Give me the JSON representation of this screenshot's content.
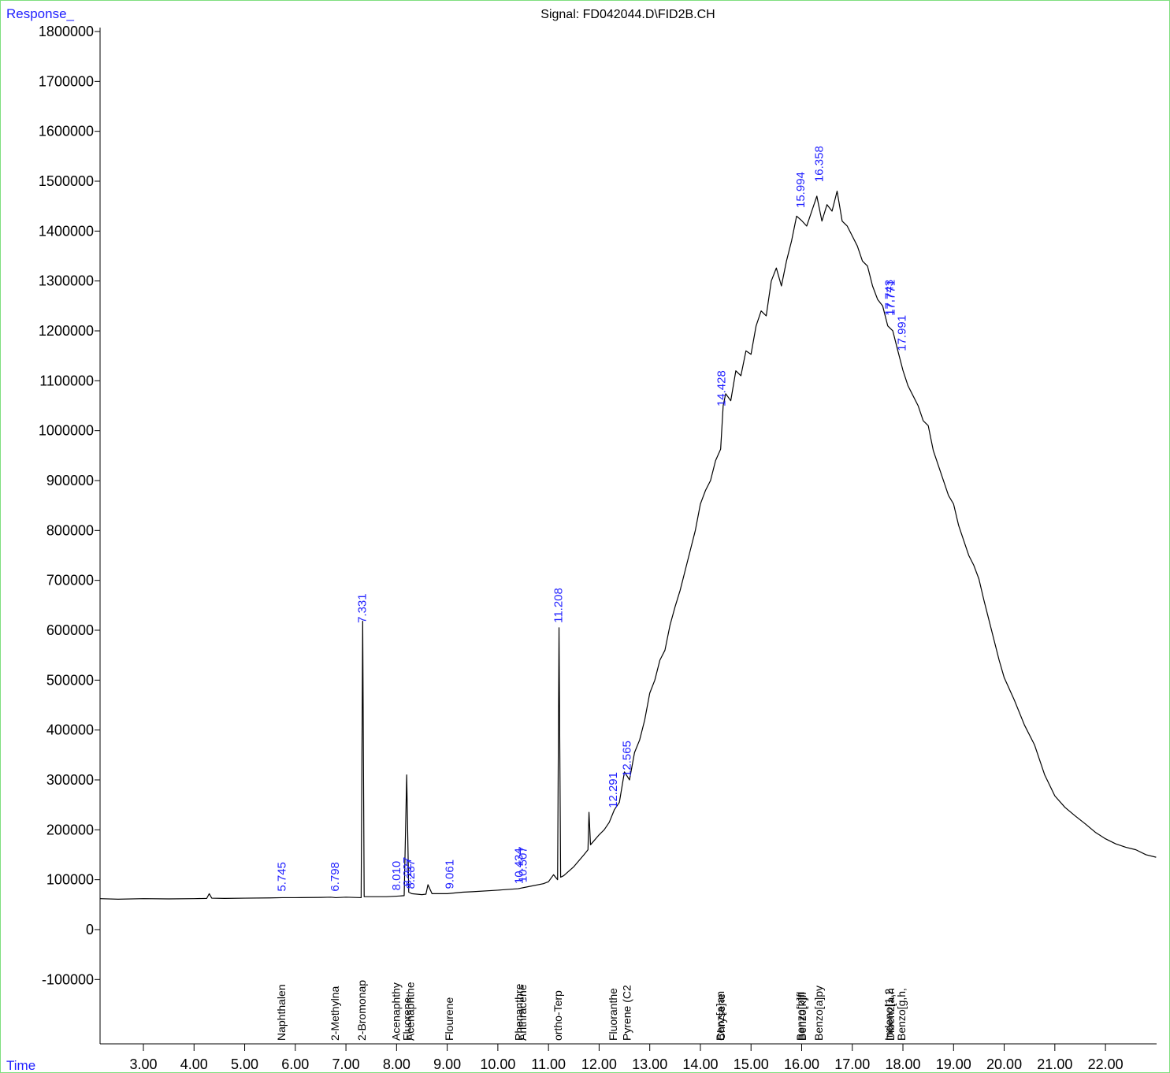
{
  "chart_data": {
    "type": "line",
    "title": "Signal: FD042044.D\\FID2B.CH",
    "ylabel": "Response_",
    "xlabel": "Time",
    "xlim": [
      2.144,
      23.01
    ],
    "ylim": [
      -229000,
      1800000
    ],
    "xticks": [
      {
        "value": 3,
        "label": "3.00"
      },
      {
        "value": 4,
        "label": "4.00"
      },
      {
        "value": 5,
        "label": "5.00"
      },
      {
        "value": 6,
        "label": "6.00"
      },
      {
        "value": 7,
        "label": "7.00"
      },
      {
        "value": 8,
        "label": "8.00"
      },
      {
        "value": 9,
        "label": "9.00"
      },
      {
        "value": 10,
        "label": "10.00"
      },
      {
        "value": 11,
        "label": "11.00"
      },
      {
        "value": 12,
        "label": "12.00"
      },
      {
        "value": 13,
        "label": "13.00"
      },
      {
        "value": 14,
        "label": "14.00"
      },
      {
        "value": 15,
        "label": "15.00"
      },
      {
        "value": 16,
        "label": "16.00"
      },
      {
        "value": 17,
        "label": "17.00"
      },
      {
        "value": 18,
        "label": "18.00"
      },
      {
        "value": 19,
        "label": "19.00"
      },
      {
        "value": 20,
        "label": "20.00"
      },
      {
        "value": 21,
        "label": "21.00"
      },
      {
        "value": 22,
        "label": "22.00"
      }
    ],
    "yticks": [
      -100000,
      0,
      100000,
      200000,
      300000,
      400000,
      500000,
      600000,
      700000,
      800000,
      900000,
      1000000,
      1100000,
      1200000,
      1300000,
      1400000,
      1500000,
      1600000,
      1700000,
      1800000
    ],
    "x": [
      2.14,
      2.5,
      3.0,
      3.5,
      4.0,
      4.25,
      4.3,
      4.35,
      4.6,
      5.0,
      5.5,
      5.745,
      6.0,
      6.5,
      6.7,
      6.798,
      7.0,
      7.3,
      7.331,
      7.36,
      7.5,
      7.8,
      8.0,
      8.15,
      8.2,
      8.24,
      8.3,
      8.5,
      8.58,
      8.62,
      8.7,
      9.0,
      9.3,
      9.5,
      10.0,
      10.4,
      10.6,
      10.9,
      11.0,
      11.1,
      11.18,
      11.208,
      11.24,
      11.3,
      11.5,
      11.7,
      11.78,
      11.8,
      11.83,
      12.0,
      12.1,
      12.2,
      12.3,
      12.4,
      12.5,
      12.6,
      12.7,
      12.8,
      12.9,
      13.0,
      13.1,
      13.2,
      13.3,
      13.4,
      13.5,
      13.6,
      13.7,
      13.8,
      13.9,
      14.0,
      14.1,
      14.2,
      14.3,
      14.4,
      14.45,
      14.5,
      14.6,
      14.7,
      14.8,
      14.9,
      15.0,
      15.1,
      15.2,
      15.3,
      15.4,
      15.5,
      15.6,
      15.7,
      15.8,
      15.9,
      16.0,
      16.1,
      16.2,
      16.3,
      16.4,
      16.5,
      16.6,
      16.7,
      16.8,
      16.9,
      17.0,
      17.1,
      17.2,
      17.3,
      17.4,
      17.5,
      17.6,
      17.7,
      17.8,
      17.9,
      18.0,
      18.1,
      18.2,
      18.3,
      18.4,
      18.5,
      18.6,
      18.7,
      18.8,
      18.9,
      19.0,
      19.1,
      19.2,
      19.3,
      19.4,
      19.5,
      19.6,
      19.7,
      19.8,
      19.9,
      20.0,
      20.2,
      20.4,
      20.6,
      20.8,
      21.0,
      21.2,
      21.4,
      21.6,
      21.8,
      22.0,
      22.2,
      22.4,
      22.6,
      22.8,
      23.0
    ],
    "series": [
      {
        "name": "FID2B",
        "color": "#000000",
        "values": [
          62000,
          61000,
          62000,
          61500,
          62000,
          62500,
          72000,
          63000,
          62500,
          63000,
          63500,
          64000,
          64000,
          64500,
          65000,
          64000,
          65000,
          64000,
          618000,
          66000,
          66000,
          66000,
          67000,
          68000,
          310000,
          75000,
          72000,
          70000,
          71000,
          90000,
          72000,
          72000,
          75000,
          76000,
          79000,
          82000,
          86000,
          92000,
          96000,
          110000,
          100000,
          605000,
          105000,
          108000,
          126000,
          150000,
          160000,
          235000,
          170000,
          190000,
          200000,
          215000,
          240000,
          255000,
          316000,
          300000,
          355000,
          380000,
          420000,
          474000,
          500000,
          540000,
          560000,
          610000,
          647000,
          680000,
          720000,
          760000,
          800000,
          853000,
          880000,
          900000,
          940000,
          963000,
          1050000,
          1074000,
          1060000,
          1120000,
          1110000,
          1160000,
          1153000,
          1210000,
          1240000,
          1230000,
          1300000,
          1326000,
          1290000,
          1340000,
          1380000,
          1430000,
          1421000,
          1410000,
          1440000,
          1470000,
          1420000,
          1453000,
          1440000,
          1480000,
          1420000,
          1410000,
          1390000,
          1370000,
          1340000,
          1330000,
          1290000,
          1263000,
          1250000,
          1210000,
          1200000,
          1160000,
          1121000,
          1090000,
          1070000,
          1050000,
          1020000,
          1010000,
          960000,
          930000,
          900000,
          870000,
          853000,
          810000,
          780000,
          750000,
          730000,
          703000,
          660000,
          620000,
          580000,
          540000,
          505000,
          460000,
          410000,
          370000,
          310000,
          268000,
          245000,
          228000,
          212000,
          195000,
          182000,
          172000,
          165000,
          160000,
          150000,
          145000
        ]
      }
    ],
    "peak_labels": [
      {
        "value": 5.745,
        "label": "5.745",
        "height": 70000
      },
      {
        "value": 6.798,
        "label": "6.798",
        "height": 70000
      },
      {
        "value": 7.331,
        "label": "7.331",
        "height": 608000
      },
      {
        "value": 8.01,
        "label": "8.010",
        "height": 72000
      },
      {
        "value": 8.227,
        "label": "8.227",
        "height": 80000
      },
      {
        "value": 8.287,
        "label": "8.287",
        "height": 75000
      },
      {
        "value": 9.061,
        "label": "9.061",
        "height": 75000
      },
      {
        "value": 10.434,
        "label": "10.434",
        "height": 85000
      },
      {
        "value": 10.507,
        "label": "10.507",
        "height": 88000
      },
      {
        "value": 11.208,
        "label": "11.208",
        "height": 608000
      },
      {
        "value": 12.291,
        "label": "12.291",
        "height": 237000
      },
      {
        "value": 12.565,
        "label": "12.565",
        "height": 300000
      },
      {
        "value": 14.428,
        "label": "14.428",
        "height": 1042000
      },
      {
        "value": 15.994,
        "label": "15.994",
        "height": 1440000
      },
      {
        "value": 16.358,
        "label": "16.358",
        "height": 1492000
      },
      {
        "value": 17.743,
        "label": "17.743",
        "height": 1224000
      },
      {
        "value": 17.771,
        "label": "17.771",
        "height": 1224000
      },
      {
        "value": 17.991,
        "label": "17.991",
        "height": 1153000
      }
    ],
    "compounds": [
      {
        "name": "Naphthalen",
        "time": 5.745
      },
      {
        "name": "2-Methylna",
        "time": 6.798
      },
      {
        "name": "2-Bromonap",
        "time": 7.331
      },
      {
        "name": "Acenaphthy",
        "time": 8.01
      },
      {
        "name": "Fluorene",
        "time": 8.227
      },
      {
        "name": "Acenaphthe",
        "time": 8.287
      },
      {
        "name": "Flourene",
        "time": 9.061
      },
      {
        "name": "Phenanthre",
        "time": 10.434
      },
      {
        "name": "Anthracene",
        "time": 10.507
      },
      {
        "name": "ortho-Terp",
        "time": 11.208
      },
      {
        "name": "Fluoranthe",
        "time": 12.291
      },
      {
        "name": "Pyrene (C2",
        "time": 12.565
      },
      {
        "name": "Benz[a]an",
        "time": 14.412
      },
      {
        "name": "Chrysene",
        "time": 14.428
      },
      {
        "name": "Benzo[b]fl",
        "time": 15.994
      },
      {
        "name": "Benzo[k]fl",
        "time": 16.03
      },
      {
        "name": "Benzo[a]py",
        "time": 16.358
      },
      {
        "name": "Indeno[1,2",
        "time": 17.743
      },
      {
        "name": "Dibenz[a,h",
        "time": 17.771
      },
      {
        "name": "Benzo[g,h,",
        "time": 17.991
      }
    ]
  }
}
